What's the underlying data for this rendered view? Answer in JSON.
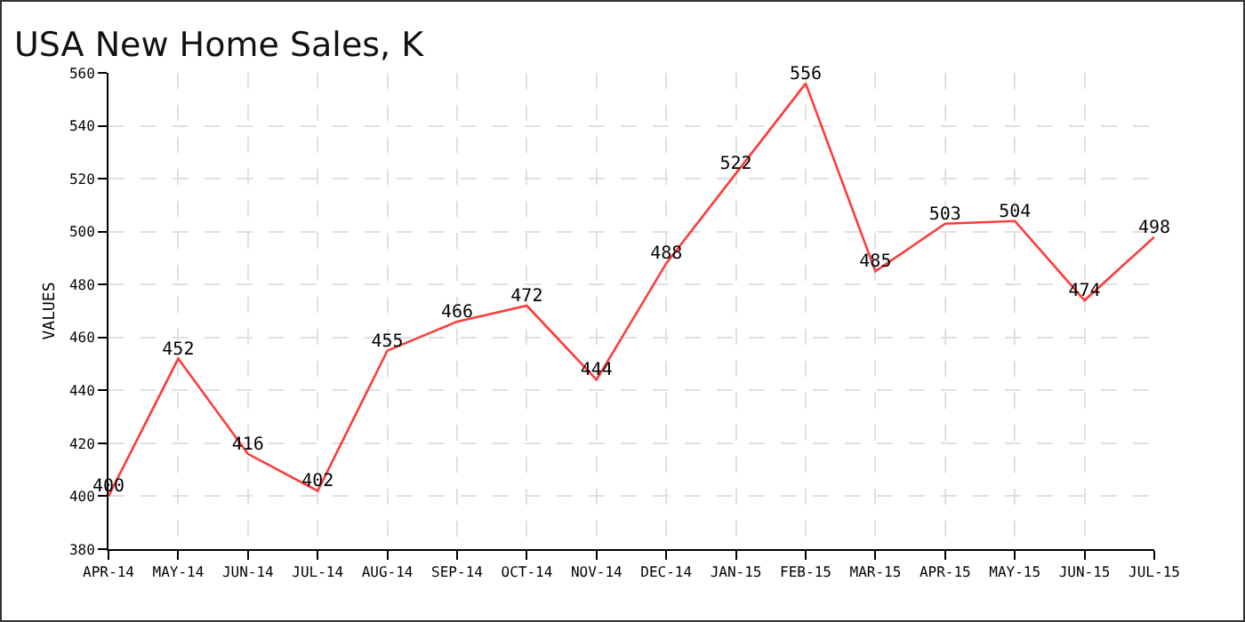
{
  "chart_data": {
    "type": "line",
    "title": "USA New Home Sales, K",
    "ylabel": "VALUES",
    "categories": [
      "APR-14",
      "MAY-14",
      "JUN-14",
      "JUL-14",
      "AUG-14",
      "SEP-14",
      "OCT-14",
      "NOV-14",
      "DEC-14",
      "JAN-15",
      "FEB-15",
      "MAR-15",
      "APR-15",
      "MAY-15",
      "JUN-15",
      "JUL-15"
    ],
    "series": [
      {
        "color": "#ff3b3b",
        "values": [
          400,
          452,
          416,
          402,
          455,
          466,
          472,
          444,
          488,
          522,
          556,
          485,
          503,
          504,
          474,
          498
        ]
      }
    ],
    "ylim": [
      380,
      560
    ],
    "yticks": [
      380,
      400,
      420,
      440,
      460,
      480,
      500,
      520,
      540,
      560
    ],
    "grid": true,
    "data_labels": true,
    "marker": "none",
    "line_style": "solid"
  }
}
